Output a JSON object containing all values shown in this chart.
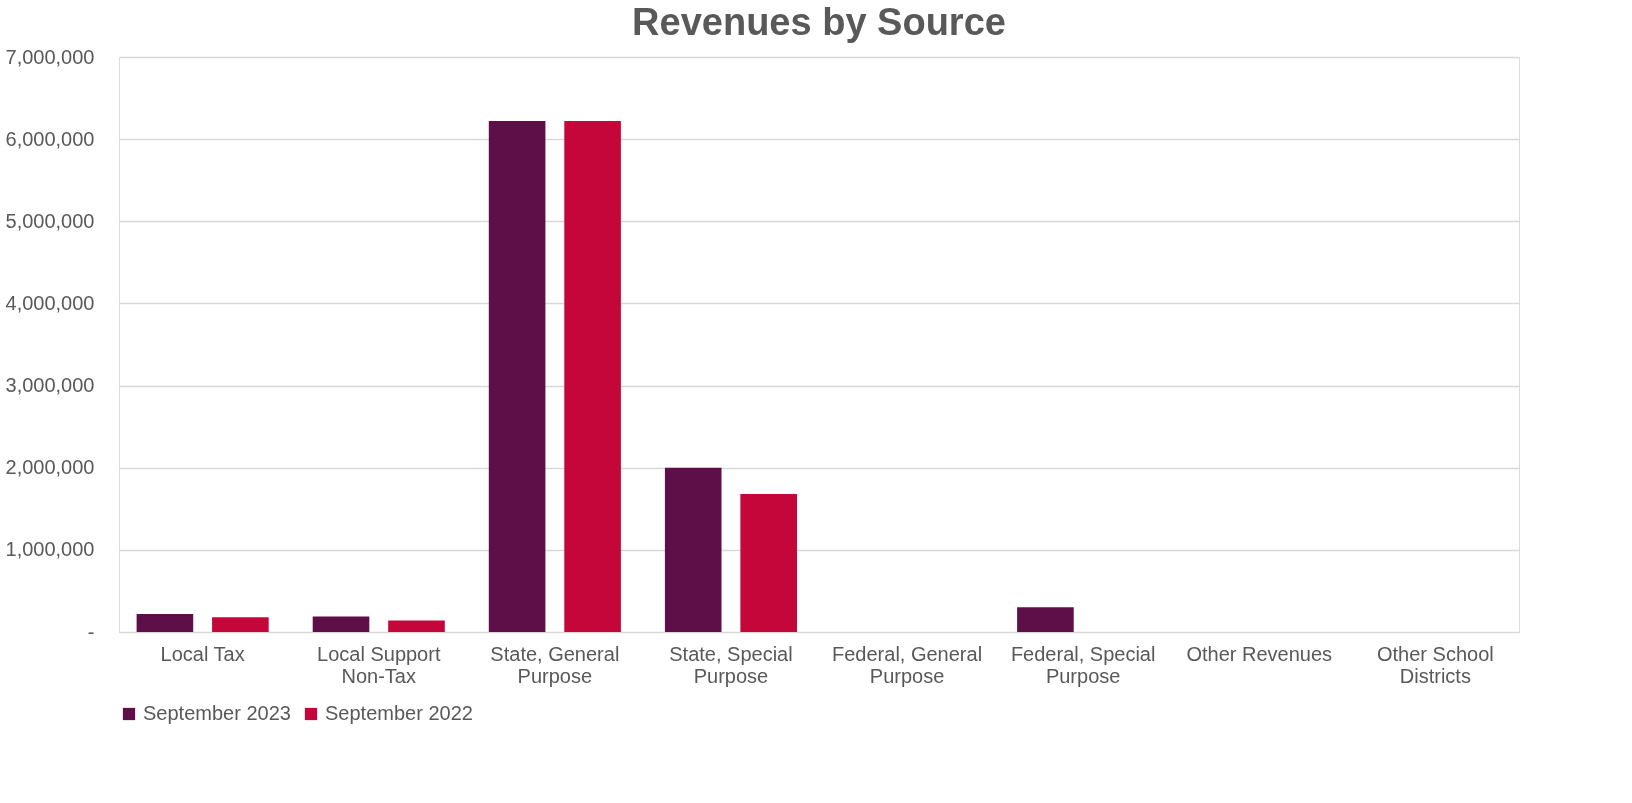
{
  "chart_data": {
    "type": "bar",
    "title": "Revenues by Source",
    "categories": [
      "Local Tax",
      "Local Support Non-Tax",
      "State, General Purpose",
      "State, Special Purpose",
      "Federal, General Purpose",
      "Federal, Special Purpose",
      "Other Revenues",
      "Other School Districts"
    ],
    "series": [
      {
        "name": "September 2023",
        "color": "#5e0f48",
        "values": [
          220000,
          190000,
          6220000,
          2000000,
          0,
          300000,
          0,
          0
        ]
      },
      {
        "name": "September 2022",
        "color": "#c4063a",
        "values": [
          180000,
          140000,
          6220000,
          1680000,
          0,
          0,
          0,
          0
        ]
      }
    ],
    "ylim": [
      0,
      7000000
    ],
    "yticks": [
      {
        "value": 0,
        "label": "-"
      },
      {
        "value": 1000000,
        "label": "1,000,000"
      },
      {
        "value": 2000000,
        "label": "2,000,000"
      },
      {
        "value": 3000000,
        "label": "3,000,000"
      },
      {
        "value": 4000000,
        "label": "4,000,000"
      },
      {
        "value": 5000000,
        "label": "5,000,000"
      },
      {
        "value": 6000000,
        "label": "6,000,000"
      },
      {
        "value": 7000000,
        "label": "7,000,000"
      }
    ],
    "grid": "y",
    "legend": "bottom"
  }
}
